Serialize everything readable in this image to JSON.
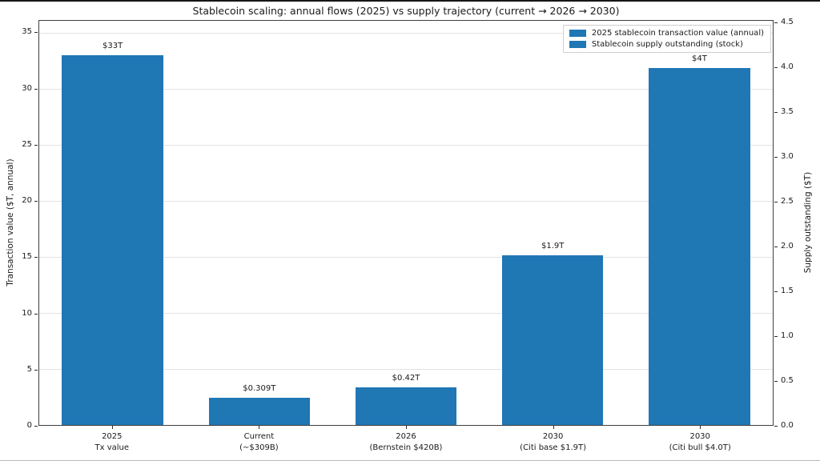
{
  "figure": {
    "title": "Stablecoin scaling: annual flows (2025) vs supply trajectory (current → 2026 → 2030)"
  },
  "chart_data": {
    "type": "bar",
    "title": "Stablecoin scaling: annual flows (2025) vs supply trajectory (current → 2026 → 2030)",
    "categories": [
      "2025\nTx value",
      "Current\n(~$309B)",
      "2026\n(Bernstein $420B)",
      "2030\n(Citi base $1.9T)",
      "2030\n(Citi bull $4.0T)"
    ],
    "bars": [
      {
        "category": "2025\nTx value",
        "value": 33,
        "axis": "left",
        "data_label": "$33T",
        "series": "2025 stablecoin transaction value (annual)"
      },
      {
        "category": "Current\n(~$309B)",
        "value": 0.309,
        "axis": "right",
        "data_label": "$0.309T",
        "series": "Stablecoin supply outstanding (stock)"
      },
      {
        "category": "2026\n(Bernstein $420B)",
        "value": 0.42,
        "axis": "right",
        "data_label": "$0.42T",
        "series": "Stablecoin supply outstanding (stock)"
      },
      {
        "category": "2030\n(Citi base $1.9T)",
        "value": 1.9,
        "axis": "right",
        "data_label": "$1.9T",
        "series": "Stablecoin supply outstanding (stock)"
      },
      {
        "category": "2030\n(Citi bull $4.0T)",
        "value": 4.0,
        "axis": "right",
        "data_label": "$4T",
        "series": "Stablecoin supply outstanding (stock)"
      }
    ],
    "left_axis": {
      "label": "Transaction value ($T, annual)",
      "ticks": [
        "0",
        "5",
        "10",
        "15",
        "20",
        "25",
        "30",
        "35"
      ],
      "min": 0,
      "max": 36.1
    },
    "right_axis": {
      "label": "Supply outstanding ($T)",
      "ticks": [
        "0.0",
        "0.5",
        "1.0",
        "1.5",
        "2.0",
        "2.5",
        "3.0",
        "3.5",
        "4.0",
        "4.5"
      ],
      "min": 0,
      "max": 4.53
    },
    "legend": {
      "position": "upper right",
      "entries": [
        "2025 stablecoin transaction value (annual)",
        "Stablecoin supply outstanding (stock)"
      ]
    },
    "bar_color": "#1f77b4",
    "grid": true,
    "grid_color": "#e3e3e3"
  }
}
